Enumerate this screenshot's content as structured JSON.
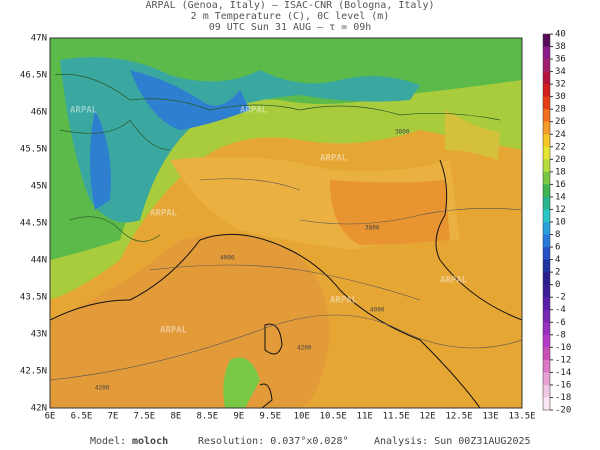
{
  "header": {
    "line1": "ARPAL (Genoa, Italy)  —  ISAC-CNR (Bologna, Italy)",
    "line2": "2 m Temperature (C), 0C level (m)",
    "line3": "09 UTC Sun 31 AUG  —  τ = 09h"
  },
  "map": {
    "lon_labels": [
      "6E",
      "6.5E",
      "7E",
      "7.5E",
      "8E",
      "8.5E",
      "9E",
      "9.5E",
      "10E",
      "10.5E",
      "11E",
      "11.5E",
      "12E",
      "12.5E",
      "13E",
      "13.5E"
    ],
    "lat_labels": [
      "47N",
      "46.5N",
      "46N",
      "45.5N",
      "45N",
      "44.5N",
      "44N",
      "43.5N",
      "43N",
      "42.5N",
      "42N"
    ],
    "contour_labels": [
      "4200",
      "4000",
      "3800",
      "4000",
      "4200",
      "3800"
    ],
    "watermark": "ARPAL"
  },
  "colorbar": {
    "levels": [
      40,
      38,
      36,
      34,
      32,
      30,
      28,
      26,
      24,
      22,
      20,
      18,
      16,
      14,
      12,
      10,
      8,
      6,
      4,
      2,
      0,
      -2,
      -4,
      -6,
      -8,
      -10,
      -12,
      -14,
      -16,
      -18,
      -20
    ],
    "colors": [
      "#5a0a5a",
      "#8b1a8b",
      "#a01e6e",
      "#b4143c",
      "#d21e1e",
      "#e63c14",
      "#f06e1e",
      "#f59b28",
      "#f5c828",
      "#e6e632",
      "#b4dc3c",
      "#78c846",
      "#3cb450",
      "#28b48c",
      "#28c8c8",
      "#28a0dc",
      "#2878dc",
      "#2850c8",
      "#1e32a0",
      "#281e8c",
      "#3c1e96",
      "#5a1eaa",
      "#7828b4",
      "#9632be",
      "#b43cc8",
      "#c850b4",
      "#dc78c8",
      "#e6a0d2",
      "#f0c8e6",
      "#fae6f5"
    ]
  },
  "footer": {
    "model_label": "Model:",
    "model": "moloch",
    "resolution": "Resolution: 0.037°x0.028°",
    "analysis": "Analysis: Sun 00Z31AUG2025"
  }
}
